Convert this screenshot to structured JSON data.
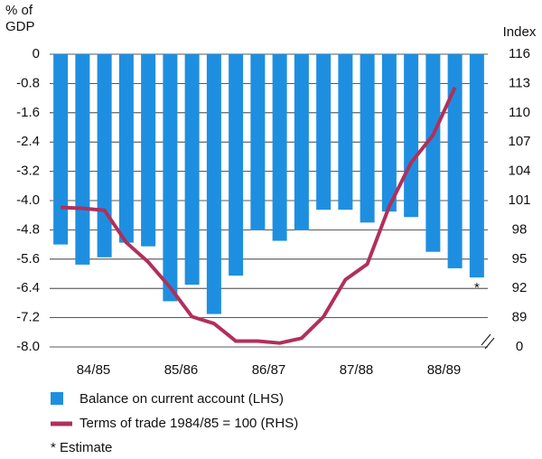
{
  "chart_data": {
    "type": "bar_line",
    "y_axis_label": [
      "% of",
      "GDP"
    ],
    "y2_axis_label": "Index",
    "categories": [
      null,
      "84/85",
      null,
      null,
      null,
      "85/86",
      null,
      null,
      null,
      "86/87",
      null,
      null,
      null,
      "87/88",
      null,
      null,
      null,
      "88/89",
      null,
      null
    ],
    "series": [
      {
        "name": "Balance on current account (LHS)",
        "color": "#1e8fe0",
        "type": "bar",
        "values": [
          -5.2,
          -5.75,
          -5.55,
          -5.15,
          -5.25,
          -6.75,
          -6.3,
          -7.1,
          -6.05,
          -4.8,
          -5.1,
          -4.8,
          -4.25,
          -4.25,
          -4.6,
          -4.3,
          -4.45,
          -5.4,
          -5.85,
          -6.1
        ]
      },
      {
        "name": "Terms of trade 1984/85 = 100 (RHS)",
        "color": "#b0305a",
        "type": "line",
        "axis": "y2",
        "values": [
          100.3,
          100.2,
          100.0,
          96.7,
          94.7,
          92.1,
          89.1,
          88.4,
          86.6,
          86.6,
          86.4,
          86.9,
          89.1,
          92.9,
          94.5,
          100.4,
          104.9,
          107.7,
          112.6,
          null
        ]
      }
    ],
    "ylim": [
      -8,
      0
    ],
    "yticks": [
      0,
      -0.8,
      -1.6,
      -2.4,
      -3.2,
      {
        "value": -4,
        "label": "-4.0"
      },
      -4.8,
      -5.6,
      -6.4,
      -7.2,
      {
        "value": -8,
        "label": "-8.0"
      }
    ],
    "y2lim": [
      86,
      116
    ],
    "y2ticks": [
      116,
      113,
      110,
      107,
      104,
      101,
      98,
      95,
      92,
      89
    ],
    "y2_break_label": "0",
    "annotation": "*",
    "legend_note": "* Estimate",
    "grid": true
  }
}
